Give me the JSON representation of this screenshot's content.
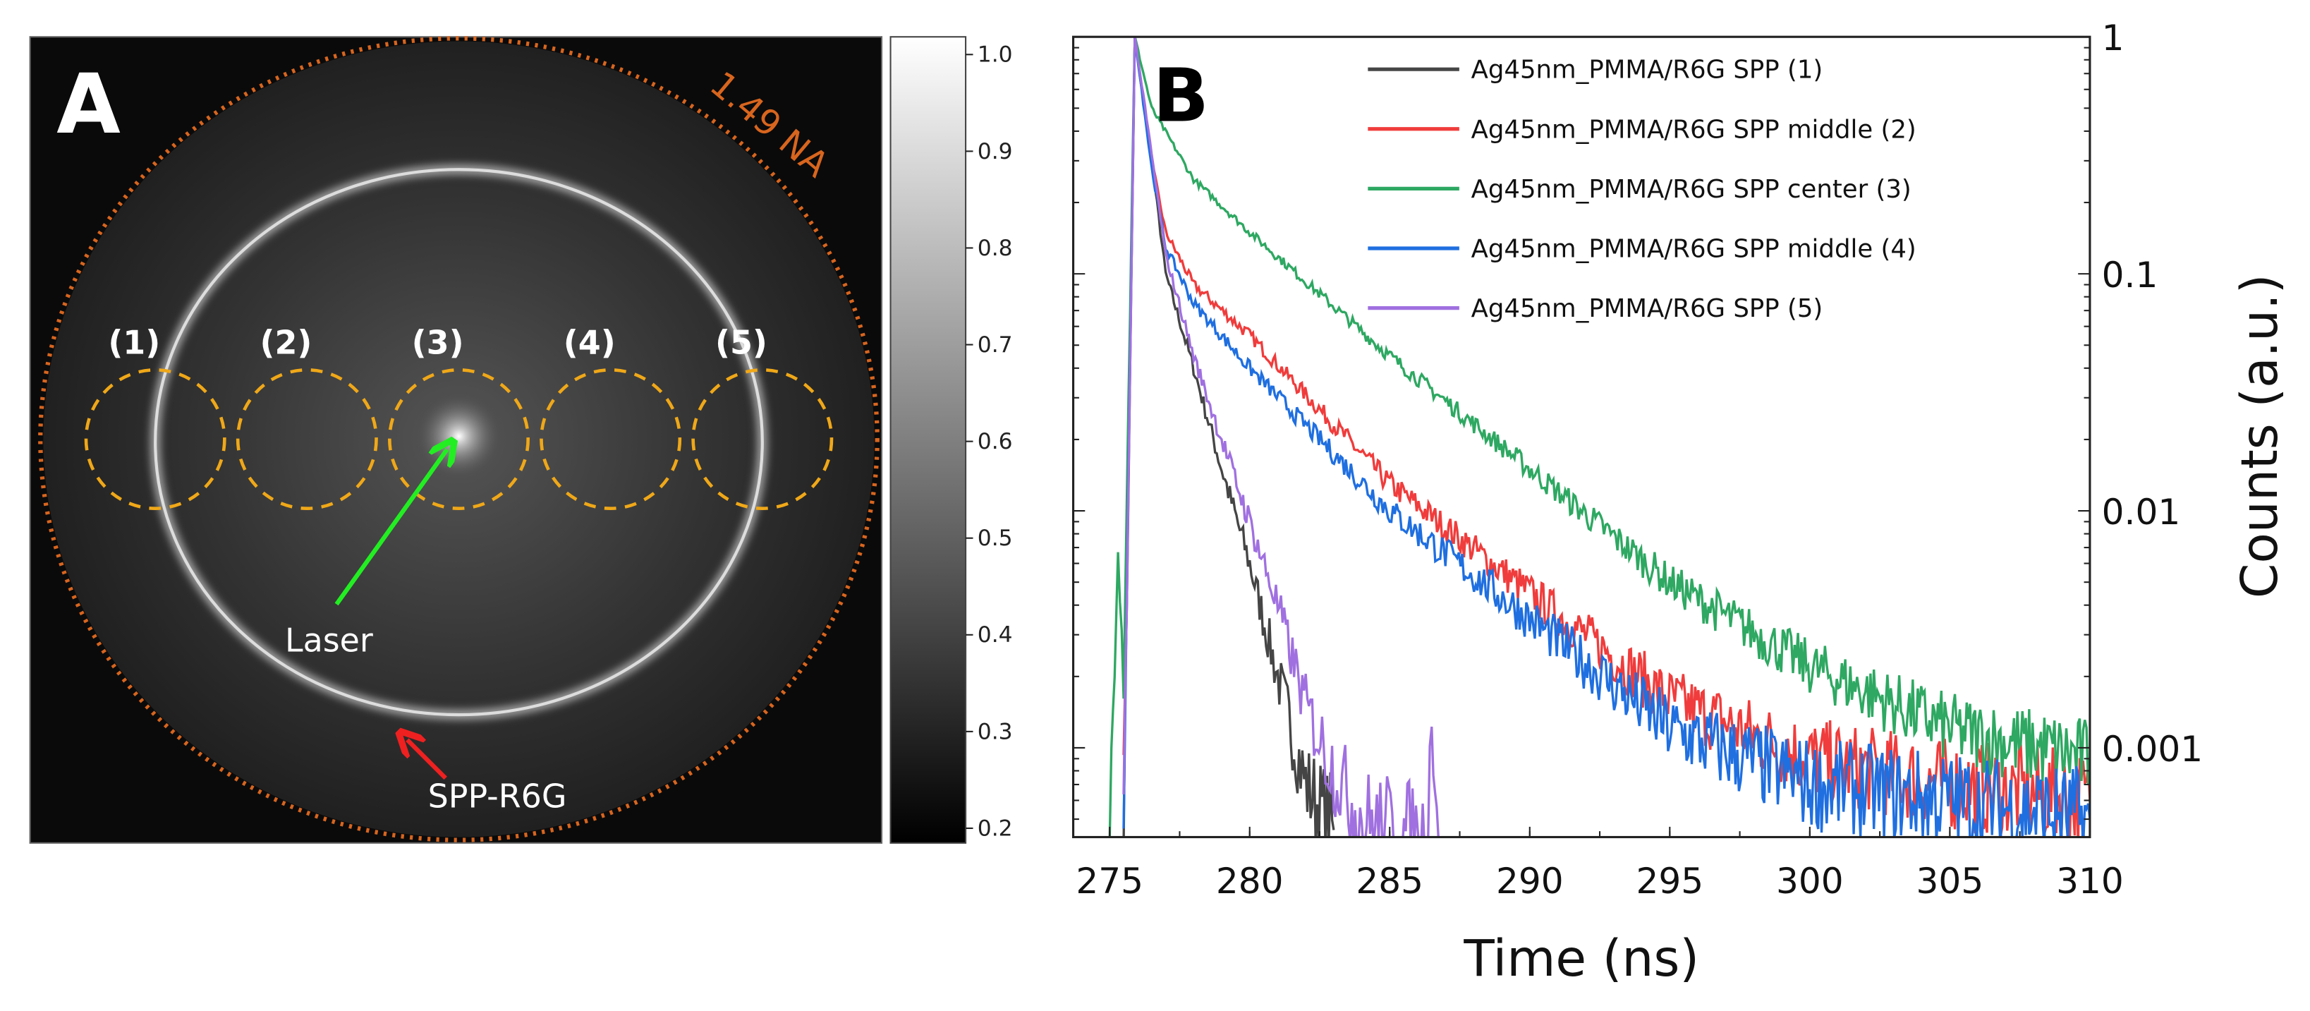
{
  "panel_a": {
    "label": "A",
    "na_label": "1.49 NA",
    "region_labels": [
      "(1)",
      "(2)",
      "(3)",
      "(4)",
      "(5)"
    ],
    "laser_label": "Laser",
    "spp_label": "SPP-R6G",
    "colors": {
      "na_circle": "#d8651e",
      "regions": "#f0a818",
      "laser_arrow": "#22ee22",
      "spp_arrow": "#ee2020"
    },
    "colorbar": {
      "ticks": [
        "1.0",
        "0.9",
        "0.8",
        "0.7",
        "0.6",
        "0.5",
        "0.4",
        "0.3",
        "0.2"
      ],
      "range": [
        0.2,
        1.0
      ]
    }
  },
  "chart_data": {
    "type": "line",
    "panel_label": "B",
    "xlabel": "Time (ns)",
    "ylabel": "Counts (a.u.)",
    "xlim": [
      273.7,
      310
    ],
    "ylim": [
      0.00042,
      1
    ],
    "yscale": "log",
    "xticks": [
      "275",
      "280",
      "285",
      "290",
      "295",
      "300",
      "305",
      "310"
    ],
    "yticks": [
      "1",
      "0.1",
      "0.01",
      "0.001"
    ],
    "legend_position": "top-right",
    "series": [
      {
        "name": "Ag45nm_PMMA/R6G SPP (1)",
        "color": "#454545",
        "x": [
          275.5,
          275.9,
          276.5,
          277,
          278,
          279,
          280,
          281,
          282,
          283
        ],
        "y": [
          0.0005,
          1,
          0.3,
          0.1,
          0.04,
          0.015,
          0.006,
          0.002,
          0.0007,
          0.00045
        ]
      },
      {
        "name": "Ag45nm_PMMA/R6G SPP middle (2)",
        "color": "#f03c3c",
        "x": [
          275.5,
          275.9,
          276.5,
          277,
          278,
          280,
          285,
          290,
          295,
          300,
          305,
          310
        ],
        "y": [
          0.0008,
          1,
          0.3,
          0.15,
          0.09,
          0.055,
          0.013,
          0.0045,
          0.0016,
          0.0009,
          0.0007,
          0.0006
        ]
      },
      {
        "name": "Ag45nm_PMMA/R6G SPP center (3)",
        "color": "#2ea862",
        "x": [
          275.0,
          275.3,
          275.5,
          275.9,
          276.5,
          278,
          280,
          285,
          290,
          295,
          300,
          305,
          310
        ],
        "y": [
          0.0005,
          0.0076,
          0.002,
          1,
          0.5,
          0.25,
          0.15,
          0.045,
          0.015,
          0.005,
          0.0022,
          0.0012,
          0.0009
        ]
      },
      {
        "name": "Ag45nm_PMMA/R6G SPP middle (4)",
        "color": "#1f6fe0",
        "x": [
          275.5,
          275.9,
          276.5,
          277,
          278,
          280,
          285,
          290,
          295,
          300,
          305,
          310
        ],
        "y": [
          0.0006,
          1,
          0.28,
          0.13,
          0.075,
          0.04,
          0.01,
          0.0035,
          0.0012,
          0.0007,
          0.0006,
          0.0005
        ]
      },
      {
        "name": "Ag45nm_PMMA/R6G SPP (5)",
        "color": "#a070e0",
        "x": [
          275.5,
          275.9,
          276.5,
          277,
          278,
          279,
          280,
          281,
          282,
          283,
          284,
          286.3,
          286.5,
          286.8
        ],
        "y": [
          0.0005,
          1,
          0.32,
          0.12,
          0.045,
          0.02,
          0.009,
          0.004,
          0.0015,
          0.0008,
          0.0005,
          0.0004,
          0.0013,
          0.0004
        ]
      }
    ]
  }
}
